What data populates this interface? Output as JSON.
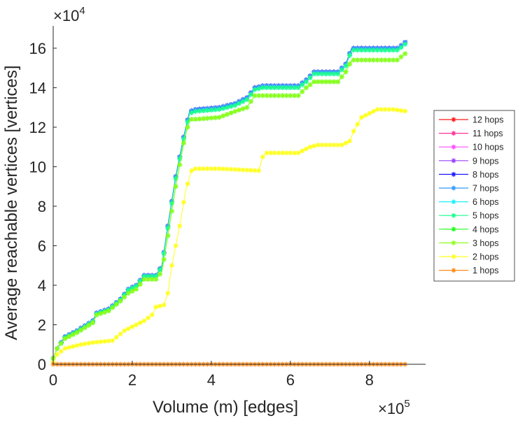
{
  "chart_data": {
    "type": "line",
    "title": "",
    "xlabel": "Volume (m) [edges]",
    "ylabel": "Average reachable vertices [vertices]",
    "x_exponent_label": {
      "base": "×10",
      "exp": "5"
    },
    "y_exponent_label": {
      "base": "×10",
      "exp": "4"
    },
    "x_units_multiplier": 100000,
    "y_units_multiplier": 10000,
    "xlim": [
      0,
      9.42
    ],
    "ylim": [
      0,
      17.13
    ],
    "xticks": [
      "0",
      "2",
      "4",
      "6",
      "8"
    ],
    "xtick_values": [
      0,
      2,
      4,
      6,
      8
    ],
    "yticks": [
      "0",
      "2",
      "4",
      "6",
      "8",
      "10",
      "12",
      "14",
      "16"
    ],
    "ytick_values": [
      0,
      2,
      4,
      6,
      8,
      10,
      12,
      14,
      16
    ],
    "grid": false,
    "legend_placement": "right",
    "marker": "asterisk",
    "series": [
      {
        "name": "12 hops",
        "color": "#ff1a1a",
        "x": [
          0,
          0.1,
          0.3,
          0.6,
          1.0,
          1.1,
          1.4,
          1.7,
          1.9,
          2.1,
          2.3,
          2.6,
          2.75,
          2.9,
          3.1,
          3.3,
          3.45,
          3.6,
          4.2,
          4.6,
          4.9,
          5.1,
          5.3,
          6.2,
          6.4,
          6.6,
          7.2,
          7.4,
          7.55,
          8.7,
          8.85,
          8.95
        ],
        "y": [
          0.3,
          0.8,
          1.4,
          1.7,
          2.2,
          2.6,
          2.8,
          3.3,
          3.8,
          4.0,
          4.5,
          4.5,
          5.0,
          7.0,
          9.5,
          11.5,
          12.8,
          12.9,
          13.0,
          13.2,
          13.5,
          14.0,
          14.1,
          14.1,
          14.4,
          14.8,
          14.8,
          15.2,
          16.0,
          16.0,
          16.2,
          16.4
        ]
      },
      {
        "name": "11 hops",
        "color": "#ff3399",
        "x": [
          0,
          0.1,
          0.3,
          0.6,
          1.0,
          1.1,
          1.4,
          1.7,
          1.9,
          2.1,
          2.3,
          2.6,
          2.75,
          2.9,
          3.1,
          3.3,
          3.45,
          3.6,
          4.2,
          4.6,
          4.9,
          5.1,
          5.3,
          6.2,
          6.4,
          6.6,
          7.2,
          7.4,
          7.55,
          8.7,
          8.85,
          8.95
        ],
        "y": [
          0.3,
          0.8,
          1.4,
          1.7,
          2.2,
          2.6,
          2.8,
          3.3,
          3.8,
          4.0,
          4.5,
          4.5,
          5.0,
          7.0,
          9.5,
          11.5,
          12.8,
          12.9,
          13.0,
          13.2,
          13.5,
          14.0,
          14.1,
          14.1,
          14.4,
          14.8,
          14.8,
          15.2,
          16.0,
          16.0,
          16.2,
          16.4
        ]
      },
      {
        "name": "10 hops",
        "color": "#ff4dff",
        "x": [
          0,
          0.1,
          0.3,
          0.6,
          1.0,
          1.1,
          1.4,
          1.7,
          1.9,
          2.1,
          2.3,
          2.6,
          2.75,
          2.9,
          3.1,
          3.3,
          3.45,
          3.6,
          4.2,
          4.6,
          4.9,
          5.1,
          5.3,
          6.2,
          6.4,
          6.6,
          7.2,
          7.4,
          7.55,
          8.7,
          8.85,
          8.95
        ],
        "y": [
          0.3,
          0.8,
          1.4,
          1.7,
          2.2,
          2.6,
          2.8,
          3.3,
          3.8,
          4.0,
          4.5,
          4.5,
          5.0,
          7.0,
          9.5,
          11.5,
          12.8,
          12.9,
          13.0,
          13.2,
          13.5,
          14.0,
          14.1,
          14.1,
          14.4,
          14.8,
          14.8,
          15.2,
          16.0,
          16.0,
          16.2,
          16.4
        ]
      },
      {
        "name": "9 hops",
        "color": "#9940ff",
        "x": [
          0,
          0.1,
          0.3,
          0.6,
          1.0,
          1.1,
          1.4,
          1.7,
          1.9,
          2.1,
          2.3,
          2.6,
          2.75,
          2.9,
          3.1,
          3.3,
          3.45,
          3.6,
          4.2,
          4.6,
          4.9,
          5.1,
          5.3,
          6.2,
          6.4,
          6.6,
          7.2,
          7.4,
          7.55,
          8.7,
          8.85,
          8.95
        ],
        "y": [
          0.3,
          0.8,
          1.4,
          1.7,
          2.2,
          2.6,
          2.8,
          3.3,
          3.8,
          4.0,
          4.5,
          4.5,
          5.0,
          7.0,
          9.5,
          11.5,
          12.8,
          12.9,
          13.0,
          13.2,
          13.5,
          14.0,
          14.1,
          14.1,
          14.4,
          14.8,
          14.8,
          15.2,
          16.0,
          16.0,
          16.2,
          16.4
        ]
      },
      {
        "name": "8 hops",
        "color": "#1a1aff",
        "x": [
          0,
          0.1,
          0.3,
          0.6,
          1.0,
          1.1,
          1.4,
          1.7,
          1.9,
          2.1,
          2.3,
          2.6,
          2.75,
          2.9,
          3.1,
          3.3,
          3.45,
          3.6,
          4.2,
          4.6,
          4.9,
          5.1,
          5.3,
          6.2,
          6.4,
          6.6,
          7.2,
          7.4,
          7.55,
          8.7,
          8.85,
          8.95
        ],
        "y": [
          0.3,
          0.8,
          1.4,
          1.7,
          2.2,
          2.6,
          2.8,
          3.3,
          3.8,
          4.0,
          4.5,
          4.5,
          5.0,
          7.0,
          9.5,
          11.5,
          12.8,
          12.9,
          13.0,
          13.2,
          13.5,
          14.0,
          14.1,
          14.1,
          14.4,
          14.8,
          14.8,
          15.2,
          16.0,
          16.0,
          16.2,
          16.4
        ]
      },
      {
        "name": "7 hops",
        "color": "#3399ff",
        "x": [
          0,
          0.1,
          0.3,
          0.6,
          1.0,
          1.1,
          1.4,
          1.7,
          1.9,
          2.1,
          2.3,
          2.6,
          2.75,
          2.9,
          3.1,
          3.3,
          3.45,
          3.6,
          4.2,
          4.6,
          4.9,
          5.1,
          5.3,
          6.2,
          6.4,
          6.6,
          7.2,
          7.4,
          7.55,
          8.7,
          8.85,
          8.95
        ],
        "y": [
          0.3,
          0.8,
          1.4,
          1.7,
          2.2,
          2.6,
          2.8,
          3.3,
          3.8,
          4.0,
          4.5,
          4.5,
          5.0,
          7.0,
          9.5,
          11.5,
          12.8,
          12.9,
          13.0,
          13.2,
          13.5,
          14.0,
          14.1,
          14.1,
          14.4,
          14.8,
          14.8,
          15.2,
          16.0,
          16.0,
          16.2,
          16.4
        ]
      },
      {
        "name": "6 hops",
        "color": "#1af0ff",
        "x": [
          0,
          0.1,
          0.3,
          0.6,
          1.0,
          1.1,
          1.4,
          1.7,
          1.9,
          2.1,
          2.3,
          2.6,
          2.75,
          2.9,
          3.1,
          3.3,
          3.45,
          3.6,
          4.2,
          4.6,
          4.9,
          5.1,
          5.3,
          6.2,
          6.4,
          6.6,
          7.2,
          7.4,
          7.55,
          8.7,
          8.85,
          8.95
        ],
        "y": [
          0.3,
          0.8,
          1.35,
          1.65,
          2.15,
          2.55,
          2.75,
          3.25,
          3.75,
          3.95,
          4.45,
          4.45,
          4.95,
          6.9,
          9.4,
          11.4,
          12.7,
          12.8,
          12.9,
          13.1,
          13.4,
          13.9,
          14.0,
          14.0,
          14.3,
          14.7,
          14.7,
          15.1,
          15.9,
          15.9,
          16.1,
          16.3
        ]
      },
      {
        "name": "5 hops",
        "color": "#1aff8c",
        "x": [
          0,
          0.1,
          0.3,
          0.6,
          1.0,
          1.1,
          1.4,
          1.7,
          1.9,
          2.1,
          2.3,
          2.6,
          2.75,
          2.9,
          3.1,
          3.3,
          3.45,
          3.6,
          4.2,
          4.6,
          4.9,
          5.1,
          5.3,
          6.2,
          6.4,
          6.6,
          7.2,
          7.4,
          7.55,
          8.7,
          8.85,
          8.95
        ],
        "y": [
          0.3,
          0.8,
          1.35,
          1.65,
          2.15,
          2.55,
          2.75,
          3.25,
          3.75,
          3.95,
          4.45,
          4.45,
          4.95,
          6.9,
          9.4,
          11.4,
          12.7,
          12.8,
          12.9,
          13.1,
          13.4,
          13.9,
          14.0,
          14.0,
          14.3,
          14.7,
          14.7,
          15.1,
          15.9,
          15.9,
          16.1,
          16.3
        ]
      },
      {
        "name": "4 hops",
        "color": "#1aff1a",
        "x": [
          0,
          0.1,
          0.3,
          0.6,
          1.0,
          1.1,
          1.4,
          1.7,
          1.9,
          2.1,
          2.3,
          2.6,
          2.75,
          2.9,
          3.1,
          3.3,
          3.45,
          3.6,
          4.2,
          4.6,
          4.9,
          5.1,
          5.3,
          6.2,
          6.4,
          6.6,
          7.2,
          7.4,
          7.55,
          8.7,
          8.95
        ],
        "y": [
          0.3,
          0.8,
          1.3,
          1.6,
          2.1,
          2.5,
          2.7,
          3.2,
          3.6,
          3.8,
          4.3,
          4.3,
          4.7,
          6.5,
          9.0,
          11.2,
          12.4,
          12.4,
          12.5,
          12.8,
          13.0,
          13.6,
          13.6,
          13.6,
          14.0,
          14.3,
          14.3,
          14.8,
          15.4,
          15.4,
          15.8
        ]
      },
      {
        "name": "3 hops",
        "color": "#8cff1a",
        "x": [
          0,
          0.1,
          0.3,
          0.6,
          1.0,
          1.1,
          1.4,
          1.7,
          1.9,
          2.1,
          2.3,
          2.6,
          2.75,
          2.9,
          3.1,
          3.3,
          3.45,
          3.6,
          4.2,
          4.6,
          4.9,
          5.1,
          5.3,
          6.2,
          6.4,
          6.6,
          7.2,
          7.4,
          7.55,
          8.7,
          8.95
        ],
        "y": [
          0.3,
          0.8,
          1.3,
          1.6,
          2.1,
          2.5,
          2.7,
          3.2,
          3.6,
          3.8,
          4.3,
          4.3,
          4.7,
          6.5,
          9.0,
          11.2,
          12.4,
          12.4,
          12.5,
          12.8,
          13.0,
          13.6,
          13.6,
          13.6,
          14.0,
          14.3,
          14.3,
          14.8,
          15.4,
          15.4,
          15.8
        ]
      },
      {
        "name": "2 hops",
        "color": "#ffff1a",
        "x": [
          0,
          0.1,
          0.3,
          0.7,
          1.0,
          1.5,
          1.8,
          2.0,
          2.3,
          2.5,
          2.6,
          2.8,
          2.9,
          3.0,
          3.2,
          3.35,
          3.5,
          3.6,
          4.2,
          5.2,
          5.3,
          5.4,
          6.2,
          6.5,
          6.7,
          7.3,
          7.5,
          7.6,
          7.8,
          8.2,
          8.6,
          8.95
        ],
        "y": [
          0.1,
          0.5,
          0.8,
          1.0,
          1.1,
          1.2,
          1.7,
          1.9,
          2.2,
          2.5,
          2.9,
          3.0,
          3.6,
          5.0,
          7.0,
          8.8,
          9.8,
          9.9,
          9.9,
          9.8,
          10.5,
          10.7,
          10.7,
          11.0,
          11.1,
          11.1,
          11.3,
          11.8,
          12.5,
          12.9,
          12.9,
          12.8
        ]
      },
      {
        "name": "1 hops",
        "color": "#ff8c1a",
        "x": [
          0,
          8.95
        ],
        "y": [
          0,
          0
        ]
      }
    ]
  }
}
